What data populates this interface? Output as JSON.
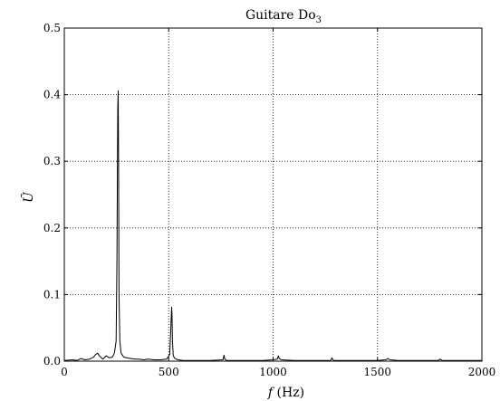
{
  "chart_data": {
    "type": "line",
    "title": "Guitare Do",
    "title_subscript": "3",
    "xlabel_var": "f",
    "xlabel_unit": " (Hz)",
    "ylabel": "Ũ",
    "xlim": [
      0,
      2000
    ],
    "ylim": [
      0,
      0.5
    ],
    "xticks": [
      0,
      500,
      1000,
      1500,
      2000
    ],
    "yticks": [
      0.0,
      0.1,
      0.2,
      0.3,
      0.4,
      0.5
    ],
    "ytick_labels": [
      "0.0",
      "0.1",
      "0.2",
      "0.3",
      "0.4",
      "0.5"
    ],
    "grid": true,
    "line_color": "#000000",
    "series": [
      {
        "x": [
          0,
          40,
          60,
          80,
          100,
          120,
          140,
          150,
          160,
          170,
          185,
          200,
          215,
          230,
          240,
          248,
          252,
          256,
          258,
          260,
          262,
          266,
          272,
          285,
          300,
          320,
          340,
          360,
          380,
          400,
          430,
          460,
          490,
          505,
          510,
          514,
          516,
          518,
          522,
          530,
          545,
          570,
          600,
          650,
          700,
          760,
          765,
          768,
          772,
          780,
          850,
          900,
          950,
          1000,
          1020,
          1025,
          1030,
          1040,
          1100,
          1200,
          1275,
          1282,
          1285,
          1290,
          1300,
          1400,
          1500,
          1540,
          1550,
          1560,
          1600,
          1700,
          1790,
          1800,
          1810,
          1900,
          2000
        ],
        "y": [
          0.001,
          0.002,
          0.001,
          0.004,
          0.002,
          0.003,
          0.006,
          0.01,
          0.012,
          0.007,
          0.003,
          0.008,
          0.005,
          0.006,
          0.012,
          0.03,
          0.15,
          0.38,
          0.406,
          0.3,
          0.1,
          0.03,
          0.012,
          0.006,
          0.005,
          0.004,
          0.003,
          0.003,
          0.002,
          0.003,
          0.002,
          0.002,
          0.003,
          0.01,
          0.05,
          0.081,
          0.07,
          0.03,
          0.008,
          0.004,
          0.002,
          0.001,
          0.001,
          0.001,
          0.001,
          0.002,
          0.009,
          0.004,
          0.002,
          0.001,
          0.001,
          0.001,
          0.001,
          0.002,
          0.003,
          0.008,
          0.004,
          0.002,
          0.001,
          0.001,
          0.001,
          0.005,
          0.003,
          0.001,
          0.001,
          0.001,
          0.001,
          0.002,
          0.004,
          0.002,
          0.001,
          0.001,
          0.001,
          0.003,
          0.001,
          0.001,
          0.001
        ]
      }
    ]
  }
}
